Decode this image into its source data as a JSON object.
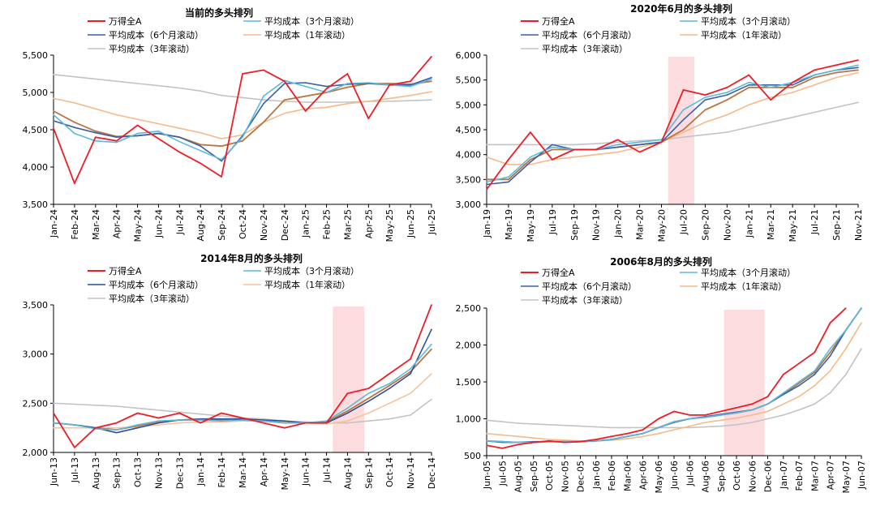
{
  "colors": {
    "wande": "#ee1c25",
    "ma3m": "#5bb9dd",
    "ma6m": "#3a5fa8",
    "ma1y": "#f5b98a",
    "ma3y": "#c3c3c3",
    "ma6m_2014": "#2f4f9a",
    "ma1y_2014": "#f7c299",
    "ma3m_brown": "#b8763f",
    "shade": "#fcd6d8"
  },
  "legend_labels": {
    "wande": "万得全A",
    "ma3m": "平均成本（3个月滚动）",
    "ma6m": "平均成本（6个月滚动）",
    "ma1y": "平均成本（1年滚动）",
    "ma3y": "平均成本（3年滚动）"
  },
  "chart_data": [
    {
      "type": "line",
      "title": "当前的多头排列",
      "x": [
        "Jan-24",
        "Feb-24",
        "Mar-24",
        "Apr-24",
        "May-24",
        "Jun-24",
        "Jul-24",
        "Aug-24",
        "Sep-24",
        "Oct-24",
        "Nov-24",
        "Dec-24",
        "Jan-25",
        "Feb-25",
        "Mar-25",
        "Apr-25",
        "May-25",
        "Jun-25",
        "Jul-25"
      ],
      "ylim": [
        3500,
        5500
      ],
      "yticks": [
        "3,500",
        "4,000",
        "4,500",
        "5,000",
        "5,500"
      ],
      "ytick_values": [
        3500,
        4000,
        4500,
        5000,
        5500
      ],
      "series": [
        {
          "name": "万得全A",
          "values": [
            4520,
            3780,
            4400,
            4350,
            4560,
            4380,
            4200,
            4050,
            3870,
            5250,
            5300,
            5150,
            4750,
            5050,
            5250,
            4650,
            5100,
            5150,
            5480
          ]
        },
        {
          "name": "平均成本（3个月滚动）",
          "values": [
            4700,
            4450,
            4350,
            4330,
            4450,
            4480,
            4340,
            4220,
            4100,
            4400,
            4950,
            5160,
            5080,
            5000,
            5120,
            5130,
            5100,
            5080,
            5180
          ]
        },
        {
          "name": "平均成本（6个月滚动）",
          "values": [
            4620,
            4530,
            4460,
            4400,
            4420,
            4450,
            4400,
            4280,
            4080,
            4420,
            4850,
            5120,
            5130,
            5080,
            5110,
            5120,
            5100,
            5100,
            5200
          ]
        },
        {
          "name": "平均成本（1年滚动）",
          "values": [
            4920,
            4860,
            4780,
            4700,
            4640,
            4580,
            4520,
            4460,
            4380,
            4430,
            4600,
            4720,
            4780,
            4800,
            4850,
            4880,
            4920,
            4960,
            5010
          ]
        },
        {
          "name": "平均成本（3年滚动）",
          "values": [
            5240,
            5210,
            5180,
            5150,
            5120,
            5090,
            5060,
            5020,
            4960,
            4930,
            4900,
            4880,
            4870,
            4870,
            4870,
            4880,
            4880,
            4890,
            4900
          ]
        },
        {
          "name": "",
          "values": [
            4750,
            4600,
            4480,
            4410,
            4420,
            4450,
            4400,
            4300,
            4280,
            4350,
            4600,
            4900,
            4950,
            5000,
            5070,
            5120,
            5120,
            5110,
            5150
          ]
        }
      ],
      "shade": null
    },
    {
      "type": "line",
      "title": "2020年6月的多头排列",
      "x": [
        "Jan-19",
        "Mar-19",
        "May-19",
        "Jul-19",
        "Sep-19",
        "Nov-19",
        "Jan-20",
        "Mar-20",
        "May-20",
        "Jul-20",
        "Sep-20",
        "Nov-20",
        "Jan-21",
        "Mar-21",
        "May-21",
        "Jul-21",
        "Sep-21",
        "Nov-21"
      ],
      "ylim": [
        3000,
        6000
      ],
      "yticks": [
        "3,000",
        "3,500",
        "4,000",
        "4,500",
        "5,000",
        "5,500",
        "6,000"
      ],
      "ytick_values": [
        3000,
        3500,
        4000,
        4500,
        5000,
        5500,
        6000
      ],
      "series": [
        {
          "name": "万得全A",
          "values": [
            3300,
            3900,
            4450,
            3900,
            4100,
            4100,
            4300,
            4050,
            4250,
            5300,
            5200,
            5350,
            5600,
            5100,
            5450,
            5700,
            5800,
            5900
          ]
        },
        {
          "name": "平均成本（3个月滚动）",
          "values": [
            3450,
            3550,
            3950,
            4150,
            4100,
            4100,
            4200,
            4250,
            4300,
            4900,
            5150,
            5250,
            5450,
            5350,
            5450,
            5600,
            5700,
            5800
          ]
        },
        {
          "name": "平均成本（6个月滚动）",
          "values": [
            3400,
            3450,
            3850,
            4200,
            4100,
            4100,
            4150,
            4200,
            4250,
            4700,
            5100,
            5200,
            5400,
            5400,
            5400,
            5600,
            5700,
            5750
          ]
        },
        {
          "name": "平均成本（1年滚动）",
          "values": [
            3950,
            3800,
            3800,
            3900,
            3950,
            4000,
            4050,
            4150,
            4250,
            4450,
            4650,
            4800,
            5000,
            5150,
            5250,
            5400,
            5550,
            5650
          ]
        },
        {
          "name": "平均成本（3年滚动）",
          "values": [
            4200,
            4200,
            4200,
            4200,
            4200,
            4220,
            4250,
            4280,
            4300,
            4350,
            4400,
            4450,
            4550,
            4650,
            4750,
            4850,
            4950,
            5050
          ]
        },
        {
          "name": "",
          "values": [
            3500,
            3500,
            3900,
            4100,
            4100,
            4100,
            4150,
            4200,
            4250,
            4500,
            4900,
            5100,
            5350,
            5350,
            5350,
            5550,
            5650,
            5700
          ]
        }
      ],
      "shade": [
        8.3,
        9.5
      ]
    },
    {
      "type": "line",
      "title": "2014年8月的多头排列",
      "x": [
        "Jun-13",
        "Jul-13",
        "Aug-13",
        "Sep-13",
        "Oct-13",
        "Nov-13",
        "Dec-13",
        "Jan-14",
        "Feb-14",
        "Mar-14",
        "Apr-14",
        "May-14",
        "Jun-14",
        "Jul-14",
        "Aug-14",
        "Sep-14",
        "Oct-14",
        "Nov-14",
        "Dec-14"
      ],
      "ylim": [
        2000,
        3500
      ],
      "yticks": [
        "2,000",
        "2,500",
        "3,000",
        "3,500"
      ],
      "ytick_values": [
        2000,
        2500,
        3000,
        3500
      ],
      "series": [
        {
          "name": "万得全A",
          "values": [
            2400,
            2050,
            2250,
            2300,
            2400,
            2350,
            2400,
            2300,
            2400,
            2350,
            2300,
            2250,
            2300,
            2300,
            2600,
            2650,
            2800,
            2950,
            3500
          ]
        },
        {
          "name": "平均成本（3个月滚动）",
          "values": [
            2300,
            2280,
            2240,
            2230,
            2280,
            2320,
            2330,
            2330,
            2320,
            2330,
            2320,
            2300,
            2300,
            2320,
            2450,
            2600,
            2700,
            2850,
            3100
          ]
        },
        {
          "name": "平均成本（6个月滚动）",
          "values": [
            2300,
            2280,
            2250,
            2200,
            2250,
            2300,
            2330,
            2340,
            2340,
            2340,
            2330,
            2320,
            2300,
            2300,
            2400,
            2520,
            2650,
            2800,
            3250
          ]
        },
        {
          "name": "平均成本（1年滚动）",
          "values": [
            2250,
            2250,
            2250,
            2250,
            2260,
            2280,
            2300,
            2310,
            2310,
            2320,
            2320,
            2310,
            2300,
            2290,
            2320,
            2400,
            2500,
            2600,
            2800
          ]
        },
        {
          "name": "平均成本（3年滚动）",
          "values": [
            2500,
            2490,
            2480,
            2470,
            2450,
            2430,
            2410,
            2390,
            2370,
            2350,
            2340,
            2320,
            2310,
            2300,
            2300,
            2320,
            2340,
            2380,
            2540
          ]
        },
        {
          "name": "",
          "values": [
            2300,
            2280,
            2250,
            2230,
            2270,
            2310,
            2330,
            2330,
            2330,
            2330,
            2320,
            2300,
            2300,
            2310,
            2420,
            2550,
            2680,
            2820,
            3050
          ]
        }
      ],
      "shade": [
        13.3,
        14.8
      ]
    },
    {
      "type": "line",
      "title": "2006年8月的多头排列",
      "x": [
        "Jun-05",
        "Jul-05",
        "Aug-05",
        "Sep-05",
        "Oct-05",
        "Nov-05",
        "Dec-05",
        "Jan-06",
        "Feb-06",
        "Mar-06",
        "Apr-06",
        "May-06",
        "Jun-06",
        "Jul-06",
        "Aug-06",
        "Sep-06",
        "Oct-06",
        "Nov-06",
        "Dec-06",
        "Jan-07",
        "Feb-07",
        "Mar-07",
        "Apr-07",
        "May-07",
        "Jun-07"
      ],
      "ylim": [
        500,
        2500
      ],
      "yticks": [
        "500",
        "1,000",
        "1,500",
        "2,000",
        "2,500"
      ],
      "ytick_values": [
        500,
        1000,
        1500,
        2000,
        2500
      ],
      "series": [
        {
          "name": "万得全A",
          "values": [
            640,
            600,
            650,
            680,
            700,
            680,
            690,
            720,
            760,
            800,
            850,
            1000,
            1100,
            1050,
            1050,
            1100,
            1150,
            1200,
            1300,
            1600,
            1750,
            1900,
            2300,
            2500,
            null
          ]
        },
        {
          "name": "平均成本（3个月滚动）",
          "values": [
            700,
            690,
            680,
            680,
            690,
            690,
            690,
            700,
            720,
            760,
            800,
            880,
            960,
            1000,
            1020,
            1050,
            1080,
            1120,
            1200,
            1350,
            1500,
            1650,
            1950,
            2200,
            2500
          ]
        },
        {
          "name": "平均成本（6个月滚动）",
          "values": [
            700,
            680,
            680,
            690,
            690,
            690,
            690,
            700,
            720,
            760,
            800,
            880,
            950,
            1000,
            1030,
            1060,
            1090,
            1120,
            1200,
            1330,
            1450,
            1600,
            1850,
            2200,
            2500
          ]
        },
        {
          "name": "平均成本（1年滚动）",
          "values": [
            800,
            780,
            760,
            740,
            720,
            710,
            700,
            700,
            710,
            730,
            760,
            800,
            850,
            900,
            950,
            980,
            1010,
            1050,
            1100,
            1200,
            1300,
            1450,
            1650,
            1950,
            2300
          ]
        },
        {
          "name": "平均成本（3年滚动）",
          "values": [
            980,
            960,
            940,
            930,
            920,
            910,
            900,
            890,
            880,
            880,
            880,
            880,
            880,
            880,
            890,
            900,
            920,
            950,
            1000,
            1050,
            1120,
            1200,
            1350,
            1600,
            1950
          ]
        },
        {
          "name": "",
          "values": [
            700,
            690,
            680,
            680,
            690,
            690,
            690,
            700,
            720,
            760,
            800,
            880,
            960,
            1000,
            1020,
            1050,
            1080,
            1120,
            1200,
            1340,
            1480,
            1630,
            1900,
            2200,
            2500
          ]
        }
      ],
      "shade": [
        15.2,
        17.8
      ]
    }
  ]
}
